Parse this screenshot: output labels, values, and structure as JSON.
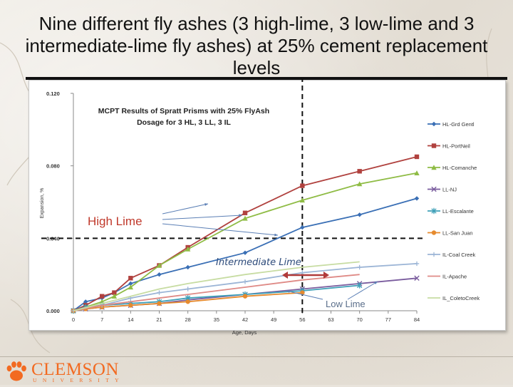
{
  "slide": {
    "title": "Nine different fly ashes (3 high-lime, 3 low-lime and 3 intermediate-lime fly ashes) at 25% cement replacement levels"
  },
  "logo": {
    "wordmark": "CLEMSON",
    "subtitle": "UNIVERSITY",
    "color": "#f26a21"
  },
  "chart_data": {
    "type": "line",
    "title_lines": [
      "MCPT Results of Spratt Prisms with 25% FlyAsh",
      "Dosage for 3 HL, 3 LL, 3 IL"
    ],
    "xlabel": "Age, Days",
    "ylabel": "Expansion, %",
    "xlim": [
      0,
      84
    ],
    "ylim": [
      0,
      0.12
    ],
    "x_ticks": [
      0,
      7,
      14,
      21,
      28,
      35,
      42,
      49,
      56,
      63,
      70,
      77,
      84
    ],
    "x_tick_labels": [
      "0",
      "7",
      "14",
      "21",
      "28",
      "35",
      "42",
      "49",
      "56",
      "63",
      "70",
      "77",
      "84"
    ],
    "y_ticks": [
      0,
      0.04,
      0.08,
      0.12
    ],
    "y_tick_labels": [
      "0.000",
      "0.040",
      "0.080",
      "0.120"
    ],
    "grid": false,
    "legend_position": "right",
    "reference_lines": {
      "x": 56,
      "y": 0.04
    },
    "annotations": {
      "high_lime": "High Lime",
      "intermediate_lime": "Intermediate  Lime",
      "low_lime": "Low Lime"
    },
    "series": [
      {
        "name": "HL-Grd Gentl",
        "color": "#3a6fb5",
        "marker": "diamond",
        "x": [
          0,
          3,
          7,
          10,
          14,
          21,
          28,
          42,
          56,
          70,
          84
        ],
        "y": [
          0,
          0.005,
          0.007,
          0.01,
          0.015,
          0.02,
          0.024,
          0.032,
          0.046,
          0.053,
          0.062
        ]
      },
      {
        "name": "HL-PortNeil",
        "color": "#b0413e",
        "marker": "square",
        "x": [
          0,
          3,
          7,
          10,
          14,
          21,
          28,
          42,
          56,
          70,
          84
        ],
        "y": [
          0,
          0.003,
          0.008,
          0.01,
          0.018,
          0.025,
          0.035,
          0.054,
          0.069,
          0.077,
          0.085
        ]
      },
      {
        "name": "HL-Comanche",
        "color": "#8fbc45",
        "marker": "triangle",
        "x": [
          0,
          3,
          7,
          10,
          14,
          21,
          28,
          42,
          56,
          70,
          84
        ],
        "y": [
          0,
          0.002,
          0.005,
          0.008,
          0.013,
          0.025,
          0.034,
          0.051,
          0.061,
          0.07,
          0.076
        ]
      },
      {
        "name": "LL-NJ",
        "color": "#7a5c9e",
        "marker": "x",
        "x": [
          0,
          3,
          7,
          14,
          21,
          28,
          42,
          56,
          70,
          84
        ],
        "y": [
          0,
          0.001,
          0.002,
          0.003,
          0.004,
          0.006,
          0.009,
          0.012,
          0.015,
          0.018
        ]
      },
      {
        "name": "LL-Escalante",
        "color": "#3fa0b8",
        "marker": "star",
        "x": [
          0,
          3,
          7,
          14,
          21,
          28,
          42,
          56,
          70
        ],
        "y": [
          0,
          0.002,
          0.003,
          0.004,
          0.005,
          0.007,
          0.009,
          0.011,
          0.014
        ]
      },
      {
        "name": "LL-San Juan",
        "color": "#e68a2e",
        "marker": "circle",
        "x": [
          0,
          3,
          7,
          14,
          21,
          28,
          42,
          56
        ],
        "y": [
          0,
          0.001,
          0.002,
          0.003,
          0.004,
          0.005,
          0.008,
          0.01
        ]
      },
      {
        "name": "IL-Coal Creek",
        "color": "#9cb5d6",
        "marker": "plus",
        "x": [
          0,
          7,
          14,
          21,
          28,
          42,
          56,
          70,
          84
        ],
        "y": [
          0,
          0.003,
          0.007,
          0.01,
          0.012,
          0.016,
          0.021,
          0.024,
          0.026
        ]
      },
      {
        "name": "IL-Apache",
        "color": "#df8a86",
        "marker": "none",
        "x": [
          0,
          7,
          14,
          21,
          28,
          42,
          56,
          70
        ],
        "y": [
          0,
          0.003,
          0.005,
          0.007,
          0.009,
          0.013,
          0.017,
          0.02
        ]
      },
      {
        "name": "IL_ColetoCreek",
        "color": "#c7dca2",
        "marker": "none",
        "x": [
          0,
          7,
          14,
          21,
          28,
          42,
          56,
          70
        ],
        "y": [
          0,
          0.004,
          0.008,
          0.012,
          0.015,
          0.02,
          0.024,
          0.027
        ]
      }
    ]
  }
}
